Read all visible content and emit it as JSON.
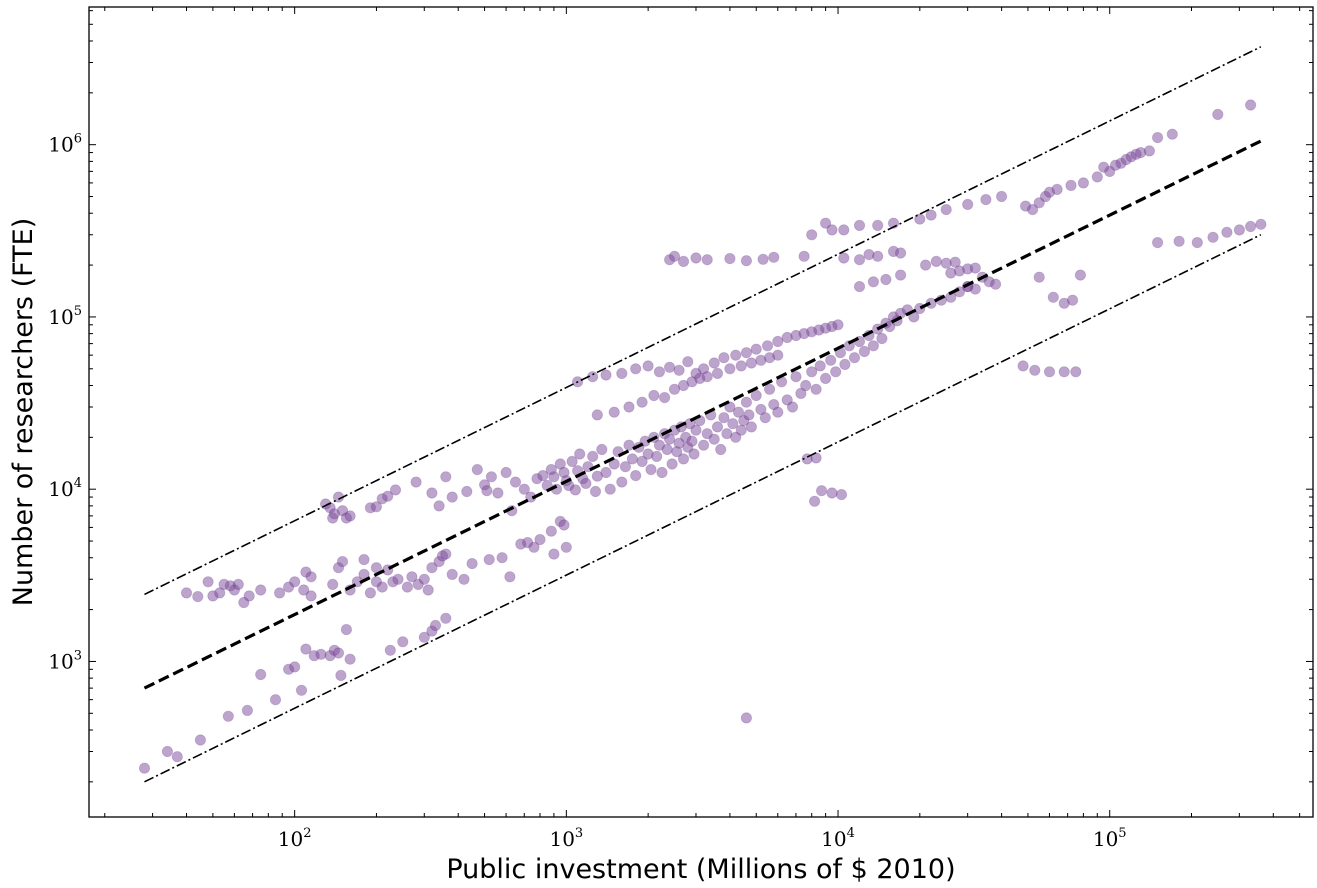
{
  "chart_data": {
    "type": "scatter",
    "title": "",
    "xlabel": "Public investment (Millions of $ 2010)",
    "ylabel": "Number of researchers (FTE)",
    "xscale": "log",
    "yscale": "log",
    "xlim": [
      17.5,
      560000
    ],
    "ylim": [
      125,
      6300000
    ],
    "grid": false,
    "xticks": [
      {
        "value": 100,
        "base": "10",
        "exp": "2"
      },
      {
        "value": 1000,
        "base": "10",
        "exp": "3"
      },
      {
        "value": 10000,
        "base": "10",
        "exp": "4"
      },
      {
        "value": 100000,
        "base": "10",
        "exp": "5"
      }
    ],
    "yticks": [
      {
        "value": 1000,
        "base": "10",
        "exp": "3"
      },
      {
        "value": 10000,
        "base": "10",
        "exp": "4"
      },
      {
        "value": 100000,
        "base": "10",
        "exp": "5"
      },
      {
        "value": 1000000,
        "base": "10",
        "exp": "6"
      }
    ],
    "point_color": "#7b4a9a",
    "point_edge_color": "#5a2d82",
    "point_alpha": 0.5,
    "lines": [
      {
        "style": "dashed",
        "x": [
          28,
          360000
        ],
        "y": [
          700,
          1050000
        ]
      },
      {
        "style": "dashdot",
        "x": [
          28,
          360000
        ],
        "y": [
          2450,
          3700000
        ]
      },
      {
        "style": "dashdot",
        "x": [
          28,
          360000
        ],
        "y": [
          200,
          300000
        ]
      }
    ],
    "points": [
      [
        28,
        240
      ],
      [
        34,
        300
      ],
      [
        37,
        280
      ],
      [
        45,
        350
      ],
      [
        57,
        480
      ],
      [
        67,
        520
      ],
      [
        75,
        840
      ],
      [
        85,
        600
      ],
      [
        95,
        900
      ],
      [
        100,
        930
      ],
      [
        106,
        680
      ],
      [
        110,
        1180
      ],
      [
        118,
        1080
      ],
      [
        125,
        1100
      ],
      [
        135,
        1080
      ],
      [
        140,
        1160
      ],
      [
        145,
        1120
      ],
      [
        148,
        830
      ],
      [
        155,
        1530
      ],
      [
        160,
        1030
      ],
      [
        225,
        1160
      ],
      [
        250,
        1300
      ],
      [
        300,
        1380
      ],
      [
        320,
        1500
      ],
      [
        330,
        1620
      ],
      [
        360,
        1780
      ],
      [
        4600,
        470
      ],
      [
        40,
        2500
      ],
      [
        44,
        2380
      ],
      [
        48,
        2900
      ],
      [
        50,
        2400
      ],
      [
        53,
        2500
      ],
      [
        55,
        2800
      ],
      [
        58,
        2750
      ],
      [
        60,
        2600
      ],
      [
        62,
        2800
      ],
      [
        65,
        2200
      ],
      [
        68,
        2400
      ],
      [
        75,
        2600
      ],
      [
        88,
        2500
      ],
      [
        95,
        2700
      ],
      [
        100,
        2900
      ],
      [
        108,
        2600
      ],
      [
        115,
        2400
      ],
      [
        138,
        2800
      ],
      [
        145,
        3500
      ],
      [
        150,
        3800
      ],
      [
        160,
        2600
      ],
      [
        170,
        2900
      ],
      [
        180,
        3200
      ],
      [
        190,
        2500
      ],
      [
        200,
        2900
      ],
      [
        210,
        2700
      ],
      [
        220,
        3400
      ],
      [
        230,
        2900
      ],
      [
        240,
        3000
      ],
      [
        260,
        2700
      ],
      [
        270,
        3100
      ],
      [
        285,
        2800
      ],
      [
        300,
        3000
      ],
      [
        310,
        2600
      ],
      [
        320,
        3500
      ],
      [
        340,
        3800
      ],
      [
        350,
        4100
      ],
      [
        360,
        4200
      ],
      [
        380,
        3200
      ],
      [
        420,
        3000
      ],
      [
        450,
        3700
      ],
      [
        520,
        3900
      ],
      [
        580,
        4000
      ],
      [
        620,
        3100
      ],
      [
        680,
        4800
      ],
      [
        720,
        4900
      ],
      [
        760,
        4600
      ],
      [
        800,
        5100
      ],
      [
        880,
        5700
      ],
      [
        900,
        4200
      ],
      [
        950,
        6500
      ],
      [
        980,
        6200
      ],
      [
        1000,
        4600
      ],
      [
        110,
        3300
      ],
      [
        115,
        3100
      ],
      [
        180,
        3900
      ],
      [
        200,
        3500
      ],
      [
        130,
        8200
      ],
      [
        135,
        7800
      ],
      [
        138,
        6800
      ],
      [
        140,
        7200
      ],
      [
        145,
        9000
      ],
      [
        150,
        7500
      ],
      [
        155,
        6800
      ],
      [
        160,
        7000
      ],
      [
        190,
        7800
      ],
      [
        200,
        7900
      ],
      [
        210,
        8800
      ],
      [
        220,
        9100
      ],
      [
        235,
        9900
      ],
      [
        280,
        11000
      ],
      [
        320,
        9500
      ],
      [
        340,
        8000
      ],
      [
        360,
        11800
      ],
      [
        380,
        9000
      ],
      [
        430,
        9700
      ],
      [
        470,
        13000
      ],
      [
        500,
        10600
      ],
      [
        510,
        9800
      ],
      [
        530,
        11800
      ],
      [
        560,
        9500
      ],
      [
        600,
        12500
      ],
      [
        630,
        7500
      ],
      [
        650,
        11000
      ],
      [
        700,
        10000
      ],
      [
        740,
        9000
      ],
      [
        780,
        11500
      ],
      [
        820,
        12000
      ],
      [
        850,
        10500
      ],
      [
        880,
        13000
      ],
      [
        900,
        11800
      ],
      [
        920,
        10000
      ],
      [
        950,
        14000
      ],
      [
        980,
        12500
      ],
      [
        1000,
        11200
      ],
      [
        1020,
        10500
      ],
      [
        1050,
        14500
      ],
      [
        1080,
        9900
      ],
      [
        1100,
        12800
      ],
      [
        1120,
        16000
      ],
      [
        1150,
        11500
      ],
      [
        1180,
        10800
      ],
      [
        1200,
        13500
      ],
      [
        1250,
        15500
      ],
      [
        1280,
        9700
      ],
      [
        1300,
        11900
      ],
      [
        1350,
        17000
      ],
      [
        1400,
        12500
      ],
      [
        1450,
        10000
      ],
      [
        1500,
        14000
      ],
      [
        1550,
        16500
      ],
      [
        1600,
        11000
      ],
      [
        1650,
        13500
      ],
      [
        1700,
        18000
      ],
      [
        1750,
        15000
      ],
      [
        1800,
        12000
      ],
      [
        1850,
        17500
      ],
      [
        1900,
        14500
      ],
      [
        1950,
        19000
      ],
      [
        2000,
        16000
      ],
      [
        2050,
        13000
      ],
      [
        2100,
        20000
      ],
      [
        2150,
        15500
      ],
      [
        2200,
        18000
      ],
      [
        2250,
        12500
      ],
      [
        2300,
        21000
      ],
      [
        2350,
        17000
      ],
      [
        2400,
        19500
      ],
      [
        2450,
        14000
      ],
      [
        2500,
        22000
      ],
      [
        2550,
        16500
      ],
      [
        2600,
        18500
      ],
      [
        2650,
        23000
      ],
      [
        2700,
        15000
      ],
      [
        2750,
        20000
      ],
      [
        2800,
        17500
      ],
      [
        2850,
        24000
      ],
      [
        2900,
        19000
      ],
      [
        2950,
        16000
      ],
      [
        3000,
        22000
      ],
      [
        3100,
        25000
      ],
      [
        3200,
        18000
      ],
      [
        3300,
        21000
      ],
      [
        3400,
        27000
      ],
      [
        3500,
        19500
      ],
      [
        3600,
        23000
      ],
      [
        3700,
        17000
      ],
      [
        3800,
        26000
      ],
      [
        3900,
        21000
      ],
      [
        4000,
        30000
      ],
      [
        4100,
        24000
      ],
      [
        4200,
        20000
      ],
      [
        4300,
        28000
      ],
      [
        4400,
        22000
      ],
      [
        4500,
        25000
      ],
      [
        4600,
        32000
      ],
      [
        4700,
        27000
      ],
      [
        4800,
        23000
      ],
      [
        5000,
        35000
      ],
      [
        5200,
        29000
      ],
      [
        5400,
        26000
      ],
      [
        5600,
        38000
      ],
      [
        5800,
        31000
      ],
      [
        6000,
        28000
      ],
      [
        6200,
        42000
      ],
      [
        6500,
        33000
      ],
      [
        6800,
        30000
      ],
      [
        7000,
        45000
      ],
      [
        7300,
        36000
      ],
      [
        7600,
        40000
      ],
      [
        8000,
        48000
      ],
      [
        8300,
        38000
      ],
      [
        8600,
        52000
      ],
      [
        9000,
        44000
      ],
      [
        9400,
        56000
      ],
      [
        9800,
        48000
      ],
      [
        10200,
        62000
      ],
      [
        10600,
        53000
      ],
      [
        11000,
        68000
      ],
      [
        11500,
        58000
      ],
      [
        12000,
        72000
      ],
      [
        12500,
        63000
      ],
      [
        13000,
        78000
      ],
      [
        13500,
        68000
      ],
      [
        14000,
        85000
      ],
      [
        14500,
        75000
      ],
      [
        15000,
        92000
      ],
      [
        15500,
        88000
      ],
      [
        16000,
        100000
      ],
      [
        16500,
        95000
      ],
      [
        17000,
        105000
      ],
      [
        18000,
        110000
      ],
      [
        19000,
        100000
      ],
      [
        20000,
        112000
      ],
      [
        1100,
        42000
      ],
      [
        1250,
        45000
      ],
      [
        1400,
        46000
      ],
      [
        1600,
        47000
      ],
      [
        1800,
        50000
      ],
      [
        2000,
        52000
      ],
      [
        2200,
        48000
      ],
      [
        2400,
        51000
      ],
      [
        2600,
        49000
      ],
      [
        2800,
        55000
      ],
      [
        3000,
        47000
      ],
      [
        3200,
        50000
      ],
      [
        3500,
        54000
      ],
      [
        3800,
        58000
      ],
      [
        4200,
        60000
      ],
      [
        4600,
        62000
      ],
      [
        5000,
        65000
      ],
      [
        5500,
        68000
      ],
      [
        6000,
        72000
      ],
      [
        6500,
        76000
      ],
      [
        7000,
        78000
      ],
      [
        7500,
        80000
      ],
      [
        8000,
        82000
      ],
      [
        8500,
        84000
      ],
      [
        9000,
        86000
      ],
      [
        9500,
        88000
      ],
      [
        10000,
        90000
      ],
      [
        1300,
        27000
      ],
      [
        1500,
        28000
      ],
      [
        1700,
        30000
      ],
      [
        1900,
        32000
      ],
      [
        2100,
        35000
      ],
      [
        2300,
        34000
      ],
      [
        2500,
        38000
      ],
      [
        2700,
        40000
      ],
      [
        2900,
        42000
      ],
      [
        3100,
        44000
      ],
      [
        3300,
        45000
      ],
      [
        3600,
        47000
      ],
      [
        4000,
        50000
      ],
      [
        4400,
        52000
      ],
      [
        4800,
        54000
      ],
      [
        5200,
        56000
      ],
      [
        5600,
        58000
      ],
      [
        6000,
        60000
      ],
      [
        2400,
        215000
      ],
      [
        2500,
        225000
      ],
      [
        2700,
        210000
      ],
      [
        3000,
        220000
      ],
      [
        3300,
        215000
      ],
      [
        4000,
        218000
      ],
      [
        4600,
        212000
      ],
      [
        5300,
        216000
      ],
      [
        5800,
        222000
      ],
      [
        7500,
        225000
      ],
      [
        8000,
        300000
      ],
      [
        9000,
        350000
      ],
      [
        9500,
        320000
      ],
      [
        10500,
        320000
      ],
      [
        12000,
        340000
      ],
      [
        14000,
        340000
      ],
      [
        16000,
        350000
      ],
      [
        20000,
        370000
      ],
      [
        22000,
        390000
      ],
      [
        25000,
        420000
      ],
      [
        30000,
        450000
      ],
      [
        35000,
        480000
      ],
      [
        40000,
        500000
      ],
      [
        10500,
        220000
      ],
      [
        12000,
        215000
      ],
      [
        13000,
        230000
      ],
      [
        14000,
        225000
      ],
      [
        16000,
        240000
      ],
      [
        17000,
        235000
      ],
      [
        12000,
        150000
      ],
      [
        13500,
        160000
      ],
      [
        15000,
        165000
      ],
      [
        17000,
        175000
      ],
      [
        21000,
        200000
      ],
      [
        23000,
        210000
      ],
      [
        25000,
        205000
      ],
      [
        27000,
        208000
      ],
      [
        26000,
        180000
      ],
      [
        28000,
        185000
      ],
      [
        30000,
        190000
      ],
      [
        32000,
        192000
      ],
      [
        34000,
        170000
      ],
      [
        36000,
        160000
      ],
      [
        38000,
        155000
      ],
      [
        30000,
        150000
      ],
      [
        32000,
        145000
      ],
      [
        22000,
        120000
      ],
      [
        24000,
        125000
      ],
      [
        26000,
        130000
      ],
      [
        28000,
        140000
      ],
      [
        30000,
        150000
      ],
      [
        49000,
        440000
      ],
      [
        52000,
        420000
      ],
      [
        55000,
        460000
      ],
      [
        58000,
        500000
      ],
      [
        60000,
        530000
      ],
      [
        64000,
        550000
      ],
      [
        72000,
        580000
      ],
      [
        80000,
        600000
      ],
      [
        90000,
        650000
      ],
      [
        100000,
        700000
      ],
      [
        110000,
        780000
      ],
      [
        120000,
        850000
      ],
      [
        130000,
        900000
      ],
      [
        150000,
        1100000
      ],
      [
        170000,
        1150000
      ],
      [
        250000,
        1500000
      ],
      [
        330000,
        1700000
      ],
      [
        95000,
        740000
      ],
      [
        105000,
        760000
      ],
      [
        115000,
        820000
      ],
      [
        125000,
        880000
      ],
      [
        140000,
        920000
      ],
      [
        150000,
        270000
      ],
      [
        180000,
        275000
      ],
      [
        210000,
        270000
      ],
      [
        240000,
        290000
      ],
      [
        270000,
        310000
      ],
      [
        300000,
        320000
      ],
      [
        330000,
        335000
      ],
      [
        360000,
        345000
      ],
      [
        48000,
        52000
      ],
      [
        53000,
        49000
      ],
      [
        60000,
        48000
      ],
      [
        68000,
        48000
      ],
      [
        75000,
        48000
      ],
      [
        55000,
        170000
      ],
      [
        62000,
        130000
      ],
      [
        68000,
        120000
      ],
      [
        73000,
        125000
      ],
      [
        78000,
        175000
      ],
      [
        8200,
        8500
      ],
      [
        8700,
        9800
      ],
      [
        9500,
        9500
      ],
      [
        10300,
        9300
      ],
      [
        7700,
        15000
      ],
      [
        8300,
        15200
      ]
    ]
  }
}
